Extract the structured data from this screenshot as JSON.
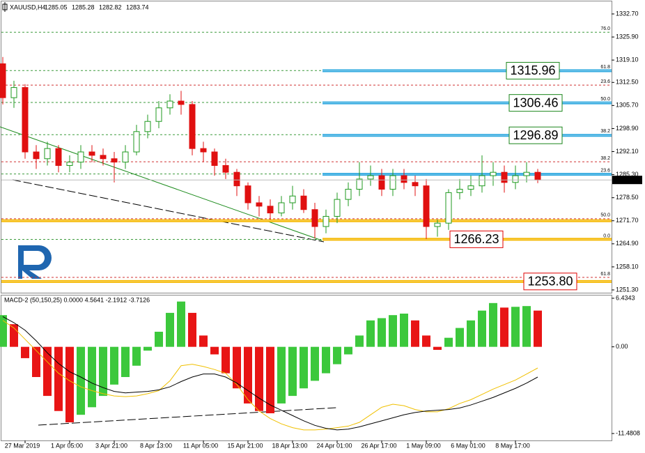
{
  "chart_data": [
    {
      "type": "candlestick",
      "symbol": "XAUUSD,H4",
      "ohlc": [
        1285.05,
        1285.28,
        1282.82,
        1283.74
      ],
      "categories": [
        null,
        null,
        "27 Mar 2019",
        null,
        null,
        null,
        "1 Apr 05:00",
        null,
        null,
        null,
        "3 Apr 21:00",
        null,
        null,
        null,
        "8 Apr 13:00",
        null,
        null,
        null,
        "11 Apr 05:00",
        null,
        null,
        null,
        "15 Apr 21:00",
        null,
        null,
        null,
        "18 Apr 13:00",
        null,
        null,
        null,
        "24 Apr 01:00",
        null,
        null,
        null,
        "26 Apr 17:00",
        null,
        null,
        null,
        "1 May 09:00",
        null,
        null,
        null,
        "6 May 01:00",
        null,
        null,
        null,
        "8 May 17:00",
        null,
        null
      ],
      "open": [
        1318,
        1308,
        1311,
        1292,
        1290,
        1293,
        1288,
        1289,
        1292,
        1291,
        1290,
        1289,
        1292,
        1298,
        1301,
        1305,
        1307,
        1306,
        1293,
        1292,
        1288,
        1286,
        1282,
        1277,
        1276,
        1274,
        1277,
        1279,
        1275,
        1270,
        1273,
        1278,
        1281,
        1284,
        1285,
        1281,
        1285,
        1283,
        1282,
        1270,
        1271,
        1280,
        1281,
        1282,
        1285,
        1286,
        1283,
        1285,
        1286
      ],
      "high": [
        1320,
        1313,
        1312,
        1294,
        1295,
        1294,
        1291,
        1294,
        1294,
        1293,
        1292,
        1294,
        1300,
        1303,
        1307,
        1309,
        1310,
        1307,
        1295,
        1293,
        1290,
        1287,
        1283,
        1279,
        1278,
        1279,
        1282,
        1281,
        1277,
        1275,
        1280,
        1283,
        1289,
        1288,
        1287,
        1287,
        1287,
        1285,
        1284,
        1272,
        1281,
        1284,
        1285,
        1291,
        1289,
        1288,
        1288,
        1289,
        1287
      ],
      "low": [
        1306,
        1305,
        1290,
        1287,
        1288,
        1286,
        1286,
        1287,
        1289,
        1288,
        1283,
        1287,
        1291,
        1296,
        1299,
        1303,
        1303,
        1291,
        1289,
        1285,
        1284,
        1279,
        1275,
        1273,
        1272,
        1273,
        1275,
        1274,
        1266.5,
        1268,
        1271,
        1276,
        1279,
        1282,
        1279,
        1279,
        1281,
        1279,
        1266.3,
        1267,
        1269,
        1278,
        1279,
        1280,
        1282,
        1280,
        1281,
        1283,
        1282.8
      ],
      "close": [
        1308,
        1311,
        1292,
        1290,
        1293,
        1288,
        1289,
        1292,
        1291,
        1290,
        1289,
        1292,
        1298,
        1301,
        1305,
        1307,
        1306,
        1293,
        1292,
        1288,
        1286,
        1282,
        1277,
        1276,
        1274,
        1277,
        1279,
        1275,
        1270,
        1273,
        1278,
        1281,
        1284,
        1285,
        1281,
        1285,
        1283,
        1282,
        1270,
        1271,
        1280,
        1281,
        1282,
        1285,
        1286,
        1283,
        1285,
        1286,
        1283.74
      ],
      "up_color": "#1f9a1f",
      "down_color": "#e01010",
      "ylim": [
        1250.48,
        1336.4
      ],
      "yticks": [
        {
          "value": 1332.7,
          "label": "1332.70"
        },
        {
          "value": 1325.9,
          "label": "1325.90"
        },
        {
          "value": 1319.1,
          "label": "1319.10"
        },
        {
          "value": 1312.5,
          "label": "1312.50"
        },
        {
          "value": 1305.7,
          "label": "1305.70"
        },
        {
          "value": 1298.9,
          "label": "1298.90"
        },
        {
          "value": 1292.1,
          "label": "1292.10"
        },
        {
          "value": 1285.3,
          "label": "1285.30"
        },
        {
          "value": 1278.5,
          "label": "1278.50"
        },
        {
          "value": 1271.7,
          "label": "1271.70"
        },
        {
          "value": 1264.9,
          "label": "1264.90"
        },
        {
          "value": 1258.1,
          "label": "1258.10"
        },
        {
          "value": 1251.3,
          "label": "1251.30"
        }
      ],
      "levels": [
        {
          "value": 1327.3,
          "label": "76.0",
          "color": "#3a9a3a"
        },
        {
          "value": 1316.0,
          "label": "61.8",
          "color": "#3a9a3a"
        },
        {
          "value": 1311.7,
          "label": "23.6",
          "color": "#d03030"
        },
        {
          "value": 1306.6,
          "label": "50.0",
          "color": "#3a9a3a"
        },
        {
          "value": 1297.1,
          "label": "38.2",
          "color": "#3a9a3a"
        },
        {
          "value": 1289.1,
          "label": "38.2",
          "color": "#d03030"
        },
        {
          "value": 1285.5,
          "label": "23.6",
          "color": "#3a9a3a"
        },
        {
          "value": 1272.3,
          "label": "50.0",
          "color": "#d03030"
        },
        {
          "value": 1266.2,
          "label": "0.0",
          "color": "#3a9a3a"
        },
        {
          "value": 1255.0,
          "label": "61.8",
          "color": "#d03030"
        }
      ],
      "bands": [
        {
          "value": 1315.96,
          "color": "#2ea8df",
          "box": "#1a861a"
        },
        {
          "value": 1306.46,
          "color": "#2ea8df",
          "box": "#1a861a"
        },
        {
          "value": 1296.89,
          "color": "#2ea8df",
          "box": "#1a861a"
        },
        {
          "value": 1285.4,
          "color": "#2ea8df"
        },
        {
          "value": 1271.7,
          "color": "#f5b800"
        },
        {
          "value": 1266.23,
          "color": "#f5b800",
          "box": "#e00000"
        },
        {
          "value": 1253.8,
          "label": "1253.80",
          "color": "#f5b800",
          "box": "#e00000"
        }
      ]
    },
    {
      "type": "macd",
      "title": "MACD-2 (50,150,25) 0.0000 4.5641 -2.1912 -3.7126",
      "histogram": [
        4.2,
        3.0,
        -1.5,
        -4,
        -6.5,
        -8.5,
        -10,
        -9,
        -8,
        -6.5,
        -5,
        -4,
        -2.5,
        -0.5,
        2,
        4.5,
        6,
        4.5,
        1.5,
        -1,
        -3.5,
        -5.5,
        -7.5,
        -8.5,
        -8.8,
        -7.5,
        -6.5,
        -5.5,
        -4.5,
        -3.5,
        -2.3,
        -1,
        1.5,
        3.5,
        3.8,
        4.2,
        4.4,
        3.5,
        1.5,
        -0.4,
        1.2,
        2.5,
        3.5,
        4.8,
        5.8,
        5.2,
        5.3,
        5.4,
        4.8
      ],
      "main": [
        4,
        3.2,
        2.2,
        0.8,
        -0.8,
        -2.2,
        -3.3,
        -4,
        -4.8,
        -5.4,
        -5.9,
        -6.1,
        -6.0,
        -5.9,
        -5.7,
        -5.3,
        -4.6,
        -4.0,
        -3.6,
        -3.6,
        -4.0,
        -4.8,
        -5.8,
        -6.8,
        -7.7,
        -8.4,
        -9.1,
        -9.8,
        -10.4,
        -10.8,
        -11.0,
        -10.9,
        -10.6,
        -10.2,
        -9.8,
        -9.4,
        -9.0,
        -8.7,
        -8.5,
        -8.4,
        -8.3,
        -8.1,
        -7.7,
        -7.2,
        -6.7,
        -6.1,
        -5.5,
        -4.8,
        -4.0
      ],
      "signal": [
        3.5,
        2.5,
        1,
        -0.5,
        -2,
        -3.5,
        -4.5,
        -5.3,
        -5.8,
        -6.2,
        -6.5,
        -6.6,
        -6.5,
        -6.2,
        -5.8,
        -4.5,
        -2.5,
        -2.3,
        -2.6,
        -3,
        -3.5,
        -5,
        -7,
        -8.5,
        -9.5,
        -10.2,
        -10.7,
        -11,
        -11,
        -10.9,
        -10.7,
        -10.5,
        -10,
        -9,
        -8,
        -7.6,
        -7.8,
        -8.3,
        -8.6,
        -8.6,
        -8.2,
        -7.5,
        -7,
        -6.3,
        -5.6,
        -5,
        -4.4,
        -3.6,
        -2.8
      ],
      "up_color": "#3cc83c",
      "down_color": "#e81515",
      "main_color": "#000000",
      "signal_color": "#f0c000",
      "ylim": [
        -12.4,
        6.8
      ],
      "yticks": [
        6.4343,
        {
          "value": 0,
          "label": "0.00"
        },
        -11.4808
      ]
    }
  ]
}
